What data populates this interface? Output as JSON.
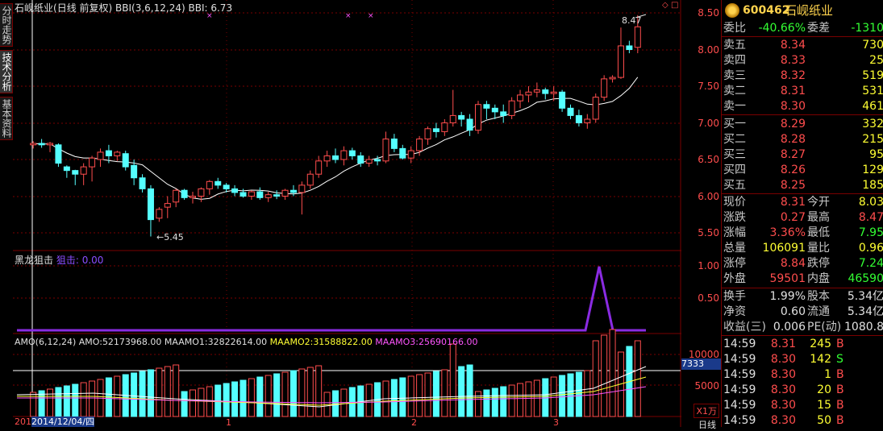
{
  "left_tabs": [
    "分时走势",
    "技术分析",
    "基本资料"
  ],
  "main_title": {
    "name": "石岘纸业",
    "mode": "(日线 前复权)",
    "bbi_params": "BBI(3,6,12,24)",
    "bbi_label": "BBI:",
    "bbi_value": "6.73"
  },
  "main_axis": [
    "8.50",
    "8.00",
    "7.50",
    "7.00",
    "6.50",
    "6.00",
    "5.50"
  ],
  "main_annotations": {
    "high": "8.47",
    "low": "5.45"
  },
  "indicator": {
    "name": "黑龙狙击",
    "value_label": "狙击:",
    "value": "0.00",
    "axis": [
      "1.00",
      "0.50"
    ]
  },
  "amo": {
    "params": "AMO(6,12,24)",
    "amo_label": "AMO:",
    "amo_value": "52173968.00",
    "m1_label": "MAAMO1:",
    "m1_value": "32822614.00",
    "m2_label": "MAAMO2:",
    "m2_value": "31588822.00",
    "m3_label": "MAAMO3:",
    "m3_value": "25690166.00",
    "axis": [
      "10000",
      "5000"
    ],
    "cursor_value": "7333",
    "unit": "X1万"
  },
  "date_bar": {
    "date": "2014/12/04/四",
    "prefix": "201",
    "months": [
      "1",
      "2",
      "3"
    ],
    "mode": "日线"
  },
  "colors": {
    "up": "#ff4d4d",
    "down": "#55ffff",
    "grid": "#7a0000",
    "bbi": "#ffffff",
    "indicator": "#8a2be2"
  },
  "quote": {
    "code": "600462",
    "name": "石岘纸业",
    "weibi_label": "委比",
    "weibi": "-40.66%",
    "weicha_label": "委差",
    "weicha": "-1310",
    "sells": [
      [
        "卖五",
        "8.34",
        "730"
      ],
      [
        "卖四",
        "8.33",
        "25"
      ],
      [
        "卖三",
        "8.32",
        "519"
      ],
      [
        "卖二",
        "8.31",
        "531"
      ],
      [
        "卖一",
        "8.30",
        "461"
      ]
    ],
    "buys": [
      [
        "买一",
        "8.29",
        "332"
      ],
      [
        "买二",
        "8.28",
        "215"
      ],
      [
        "买三",
        "8.27",
        "95"
      ],
      [
        "买四",
        "8.26",
        "129"
      ],
      [
        "买五",
        "8.25",
        "185"
      ]
    ],
    "stats": [
      [
        "现价",
        "8.31",
        "今开",
        "8.03"
      ],
      [
        "涨跌",
        "0.27",
        "最高",
        "8.47"
      ],
      [
        "涨幅",
        "3.36%",
        "最低",
        "7.95"
      ],
      [
        "总量",
        "106091",
        "量比",
        "0.96"
      ],
      [
        "涨停",
        "8.84",
        "跌停",
        "7.24"
      ],
      [
        "外盘",
        "59501",
        "内盘",
        "46590"
      ]
    ],
    "stats2": [
      [
        "换手",
        "1.99%",
        "股本",
        "5.34亿"
      ],
      [
        "净资",
        "0.60",
        "流通",
        "5.34亿"
      ],
      [
        "收益(三)",
        "0.006",
        "PE(动)",
        "1080.8"
      ]
    ],
    "ticks": [
      [
        "14:59",
        "8.31",
        "245",
        "B"
      ],
      [
        "14:59",
        "8.30",
        "142",
        "S"
      ],
      [
        "14:59",
        "8.30",
        "1",
        "B"
      ],
      [
        "14:59",
        "8.30",
        "20",
        "B"
      ],
      [
        "14:59",
        "8.30",
        "15",
        "B"
      ],
      [
        "14:59",
        "8.30",
        "50",
        "B"
      ]
    ]
  }
}
